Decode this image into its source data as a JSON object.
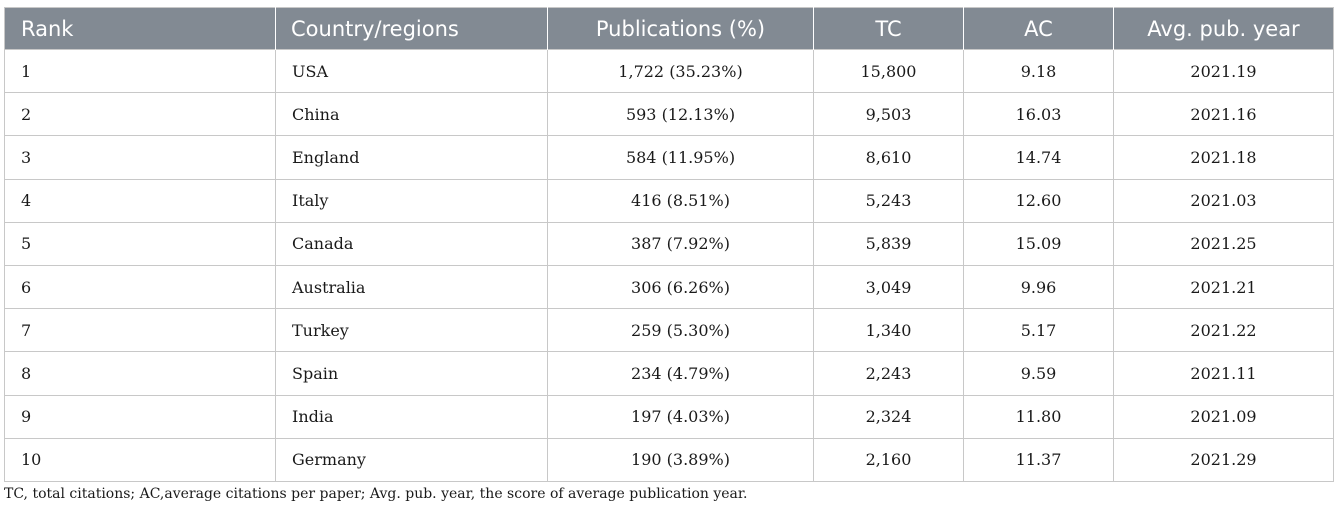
{
  "table": {
    "headers": [
      "Rank",
      "Country/regions",
      "Publications (%)",
      "TC",
      "AC",
      "Avg. pub. year"
    ],
    "rows": [
      [
        "1",
        "USA",
        "1,722 (35.23%)",
        "15,800",
        "9.18",
        "2021.19"
      ],
      [
        "2",
        "China",
        "593 (12.13%)",
        "9,503",
        "16.03",
        "2021.16"
      ],
      [
        "3",
        "England",
        "584 (11.95%)",
        "8,610",
        "14.74",
        "2021.18"
      ],
      [
        "4",
        "Italy",
        "416 (8.51%)",
        "5,243",
        "12.60",
        "2021.03"
      ],
      [
        "5",
        "Canada",
        "387 (7.92%)",
        "5,839",
        "15.09",
        "2021.25"
      ],
      [
        "6",
        "Australia",
        "306 (6.26%)",
        "3,049",
        "9.96",
        "2021.21"
      ],
      [
        "7",
        "Turkey",
        "259 (5.30%)",
        "1,340",
        "5.17",
        "2021.22"
      ],
      [
        "8",
        "Spain",
        "234 (4.79%)",
        "2,243",
        "9.59",
        "2021.11"
      ],
      [
        "9",
        "India",
        "197 (4.03%)",
        "2,324",
        "11.80",
        "2021.09"
      ],
      [
        "10",
        "Germany",
        "190 (3.89%)",
        "2,160",
        "11.37",
        "2021.29"
      ]
    ]
  },
  "footnote": "TC, total citations; AC,average citations per paper; Avg. pub. year, the score of average publication year."
}
